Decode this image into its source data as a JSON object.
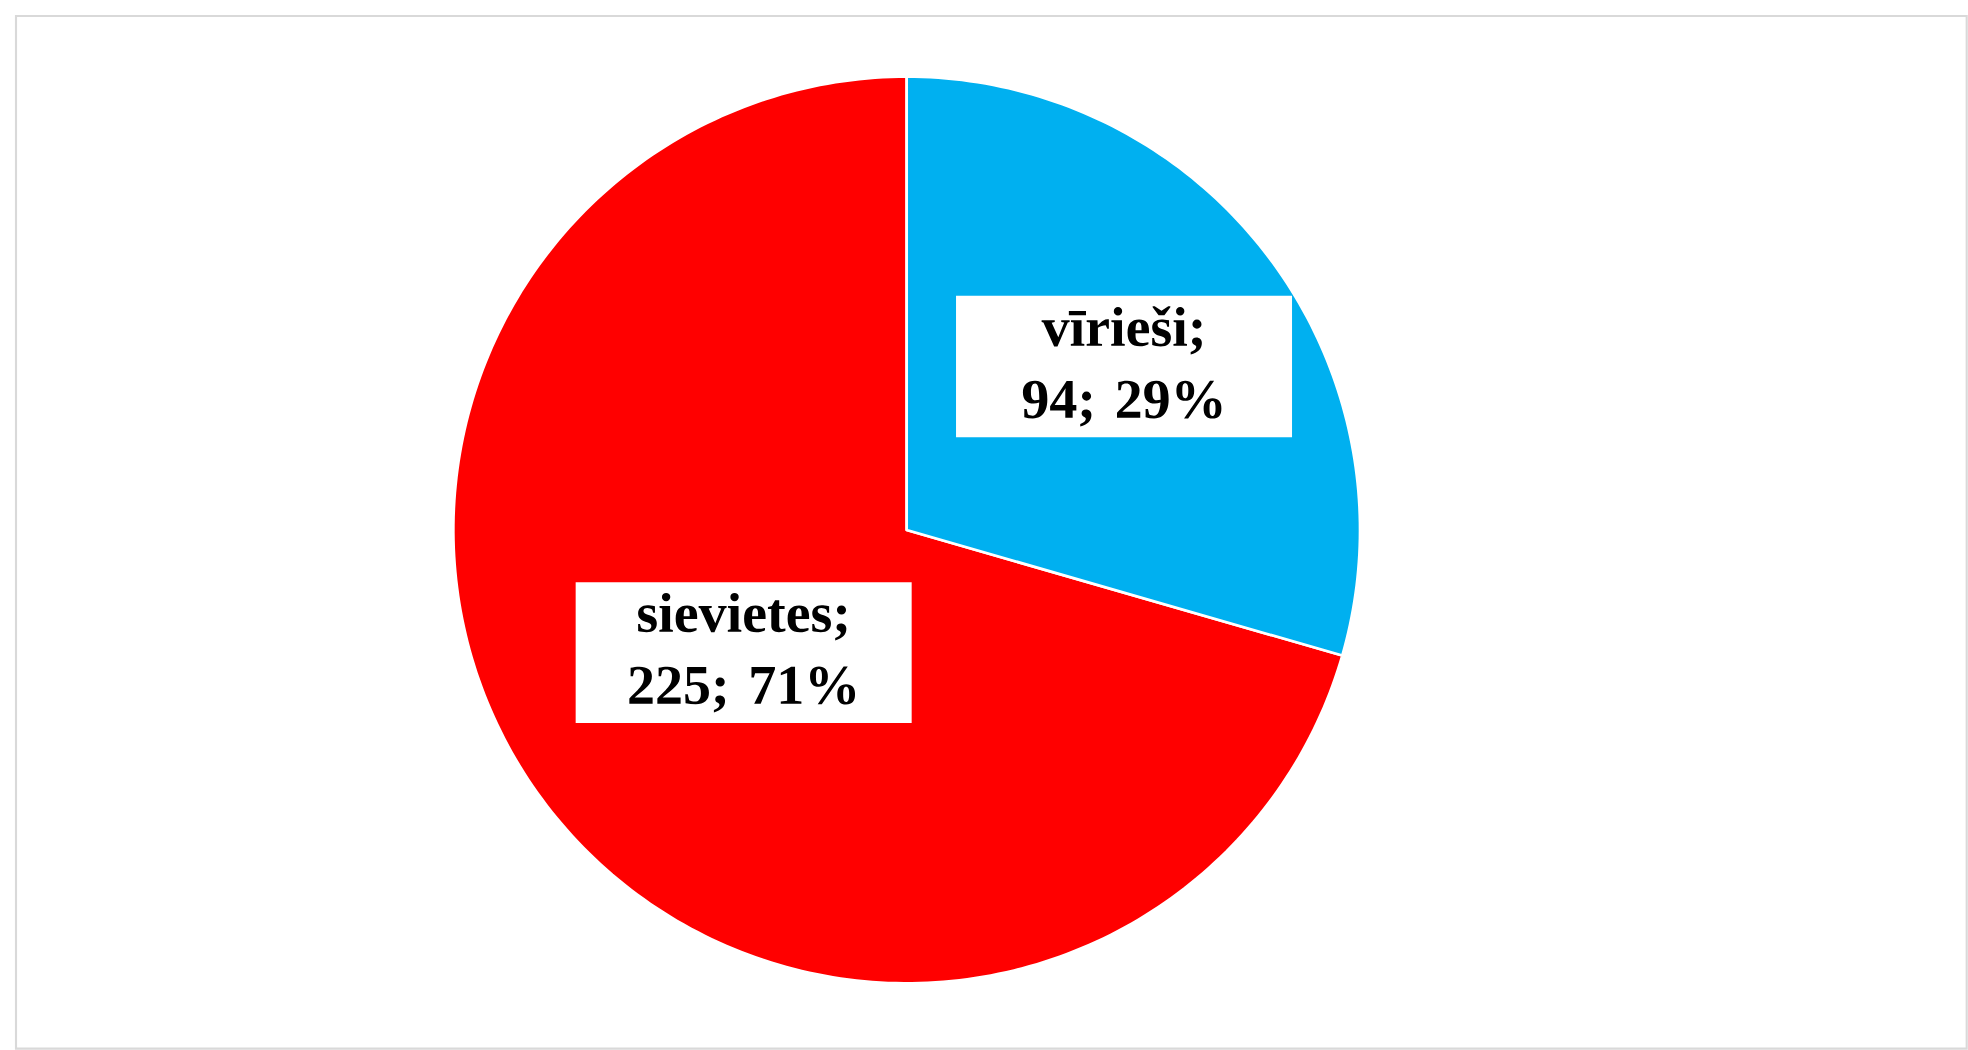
{
  "chart_data": {
    "type": "pie",
    "categories": [
      "sievietes",
      "vīrieši"
    ],
    "values": [
      225,
      94
    ],
    "colors": [
      "#ff0000",
      "#00b0f0"
    ],
    "value_labels": [
      "; 225; 71%",
      "; 94; 29%"
    ]
  }
}
